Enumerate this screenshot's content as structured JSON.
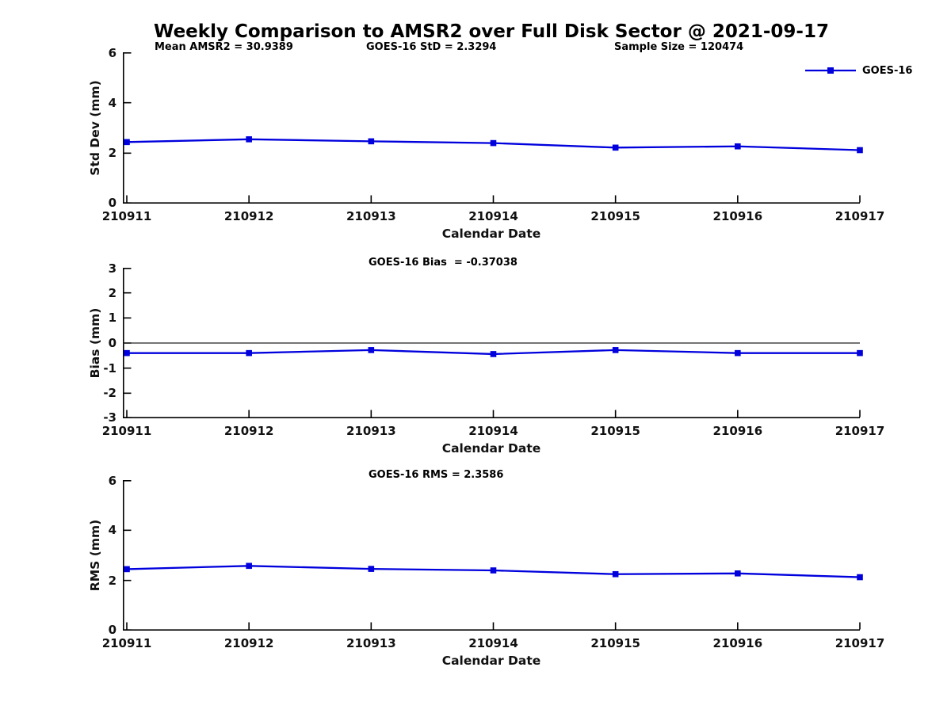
{
  "title": "Weekly Comparison to AMSR2 over Full Disk Sector @ 2021-09-17",
  "colors": {
    "series": "#0000dd",
    "axis": "#000000",
    "zero_line": "#222222",
    "text": "#111111"
  },
  "chart_data": [
    {
      "type": "line",
      "categories": [
        "210911",
        "210912",
        "210913",
        "210914",
        "210915",
        "210916",
        "210917"
      ],
      "series": [
        {
          "name": "GOES-16",
          "values": [
            2.44,
            2.55,
            2.47,
            2.4,
            2.22,
            2.27,
            2.12
          ]
        }
      ],
      "xlabel": "Calendar Date",
      "ylabel": "Std Dev (mm)",
      "ylim": [
        0,
        6
      ],
      "yticks": [
        0,
        2,
        4,
        6
      ],
      "grid": false,
      "zero_line": false,
      "marker": "square",
      "annotations": [
        "Mean AMSR2 = 30.9389",
        "GOES-16 StD = 2.3294",
        "Sample Size = 120474"
      ],
      "legend_label": "GOES-16",
      "legend_position": "top-right"
    },
    {
      "type": "line",
      "categories": [
        "210911",
        "210912",
        "210913",
        "210914",
        "210915",
        "210916",
        "210917"
      ],
      "series": [
        {
          "name": "GOES-16",
          "values": [
            -0.4,
            -0.4,
            -0.28,
            -0.44,
            -0.28,
            -0.4,
            -0.4
          ]
        }
      ],
      "xlabel": "Calendar Date",
      "ylabel": "Bias (mm)",
      "ylim": [
        -3,
        3
      ],
      "yticks": [
        3,
        2,
        1,
        0,
        -1,
        -2,
        -3
      ],
      "grid": false,
      "zero_line": true,
      "marker": "square",
      "annotations": [
        "GOES-16 Bias  = -0.37038"
      ],
      "legend_label": null,
      "legend_position": null
    },
    {
      "type": "line",
      "categories": [
        "210911",
        "210912",
        "210913",
        "210914",
        "210915",
        "210916",
        "210917"
      ],
      "series": [
        {
          "name": "GOES-16",
          "values": [
            2.45,
            2.58,
            2.46,
            2.4,
            2.25,
            2.28,
            2.13
          ]
        }
      ],
      "xlabel": "Calendar Date",
      "ylabel": "RMS (mm)",
      "ylim": [
        0,
        6
      ],
      "yticks": [
        0,
        2,
        4,
        6
      ],
      "grid": false,
      "zero_line": false,
      "marker": "square",
      "annotations": [
        "GOES-16 RMS = 2.3586"
      ],
      "legend_label": null,
      "legend_position": null
    }
  ]
}
